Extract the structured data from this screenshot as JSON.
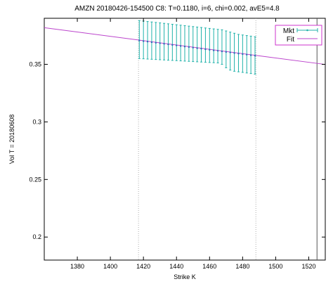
{
  "chart_data": {
    "type": "scatter",
    "title": "AMZN 20180426-154500  C8:  T=0.1180, i=6, chi=0.002, avE5=4.8",
    "xlabel": "Strike K",
    "ylabel": "Vol   T = 20180608",
    "xlim": [
      1360,
      1530
    ],
    "ylim": [
      0.18,
      0.39
    ],
    "xticks": [
      1380,
      1400,
      1420,
      1440,
      1460,
      1480,
      1500,
      1520
    ],
    "yticks": [
      0.2,
      0.25,
      0.3,
      0.35
    ],
    "ytick_labels": [
      "0.2",
      "0.25",
      "0.3",
      "0.35"
    ],
    "legend_position": "top-right",
    "legend": [
      {
        "label": "Mkt",
        "color": "#20b2aa"
      },
      {
        "label": "Fit",
        "color": "#bb44cc"
      }
    ],
    "mkt": {
      "name": "Mkt",
      "color": "#20b2aa",
      "x": [
        1417.5,
        1420,
        1422.5,
        1425,
        1427.5,
        1430,
        1432.5,
        1435,
        1437.5,
        1440,
        1442.5,
        1445,
        1447.5,
        1450,
        1452.5,
        1455,
        1457.5,
        1460,
        1462.5,
        1465,
        1467.5,
        1470,
        1472.5,
        1475,
        1477.5,
        1480,
        1482.5,
        1485,
        1487.5
      ],
      "y": [
        0.3707,
        0.3701,
        0.3697,
        0.3692,
        0.3687,
        0.3683,
        0.3678,
        0.3673,
        0.3668,
        0.3664,
        0.3659,
        0.3654,
        0.365,
        0.3645,
        0.364,
        0.3636,
        0.3631,
        0.3626,
        0.3621,
        0.3617,
        0.3612,
        0.3607,
        0.3603,
        0.3598,
        0.3593,
        0.3589,
        0.3584,
        0.3579,
        0.3575
      ],
      "err_low": [
        0.355,
        0.3548,
        0.3546,
        0.3544,
        0.3542,
        0.354,
        0.3538,
        0.3536,
        0.3534,
        0.3532,
        0.353,
        0.3528,
        0.3526,
        0.3524,
        0.3522,
        0.352,
        0.3518,
        0.3516,
        0.3514,
        0.3512,
        0.35,
        0.347,
        0.345,
        0.344,
        0.3435,
        0.343,
        0.3425,
        0.342,
        0.3415
      ],
      "err_high": [
        0.388,
        0.3876,
        0.3872,
        0.3868,
        0.3864,
        0.386,
        0.3856,
        0.3852,
        0.3848,
        0.3844,
        0.384,
        0.3836,
        0.3832,
        0.3828,
        0.3824,
        0.382,
        0.3816,
        0.3812,
        0.3808,
        0.3804,
        0.38,
        0.379,
        0.378,
        0.377,
        0.376,
        0.3755,
        0.375,
        0.3745,
        0.374
      ]
    },
    "fit": {
      "name": "Fit",
      "color": "#bb44cc",
      "x": [
        1360,
        1530
      ],
      "y": [
        0.3818,
        0.3499
      ]
    },
    "vlines_dotted": [
      1417,
      1488
    ],
    "vline_solid": 1525
  }
}
